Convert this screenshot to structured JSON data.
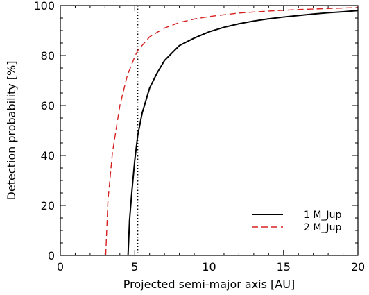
{
  "chart_data": {
    "type": "line",
    "xlabel": "Projected semi-major axis [AU]",
    "ylabel": "Detection probability [%]",
    "xlim": [
      0,
      20
    ],
    "ylim": [
      0,
      100
    ],
    "xticks": [
      0,
      5,
      10,
      15,
      20
    ],
    "yticks": [
      0,
      20,
      40,
      60,
      80,
      100
    ],
    "grid": false,
    "legend_position": "bottom-right",
    "reference_line": {
      "axis": "x",
      "value": 5.2,
      "style": "dotted",
      "color": "#000000"
    },
    "series": [
      {
        "name": "1 M_Jup",
        "color": "#000000",
        "style": "solid",
        "x": [
          4.55,
          4.65,
          4.8,
          5.0,
          5.2,
          5.5,
          6.0,
          6.5,
          7.0,
          8.0,
          9.0,
          10.0,
          11.0,
          12.0,
          13.0,
          14.0,
          15.0,
          16.0,
          17.0,
          18.0,
          19.0,
          20.0
        ],
        "y": [
          0,
          14,
          25,
          38,
          48,
          57,
          67,
          73,
          78,
          84,
          87,
          89.5,
          91.3,
          92.7,
          93.8,
          94.7,
          95.4,
          96.0,
          96.6,
          97.1,
          97.5,
          98.0
        ]
      },
      {
        "name": "2 M_Jup",
        "color": "#d62020",
        "style": "dashed",
        "x": [
          3.05,
          3.2,
          3.5,
          4.0,
          4.5,
          5.0,
          5.2,
          6.0,
          7.0,
          8.0,
          9.0,
          10.0,
          12.0,
          14.0,
          16.0,
          18.0,
          20.0
        ],
        "y": [
          0,
          22,
          41,
          60,
          72,
          79.5,
          82,
          87.5,
          91,
          93.2,
          94.6,
          95.6,
          97.0,
          97.8,
          98.4,
          98.8,
          99.2
        ]
      }
    ]
  }
}
